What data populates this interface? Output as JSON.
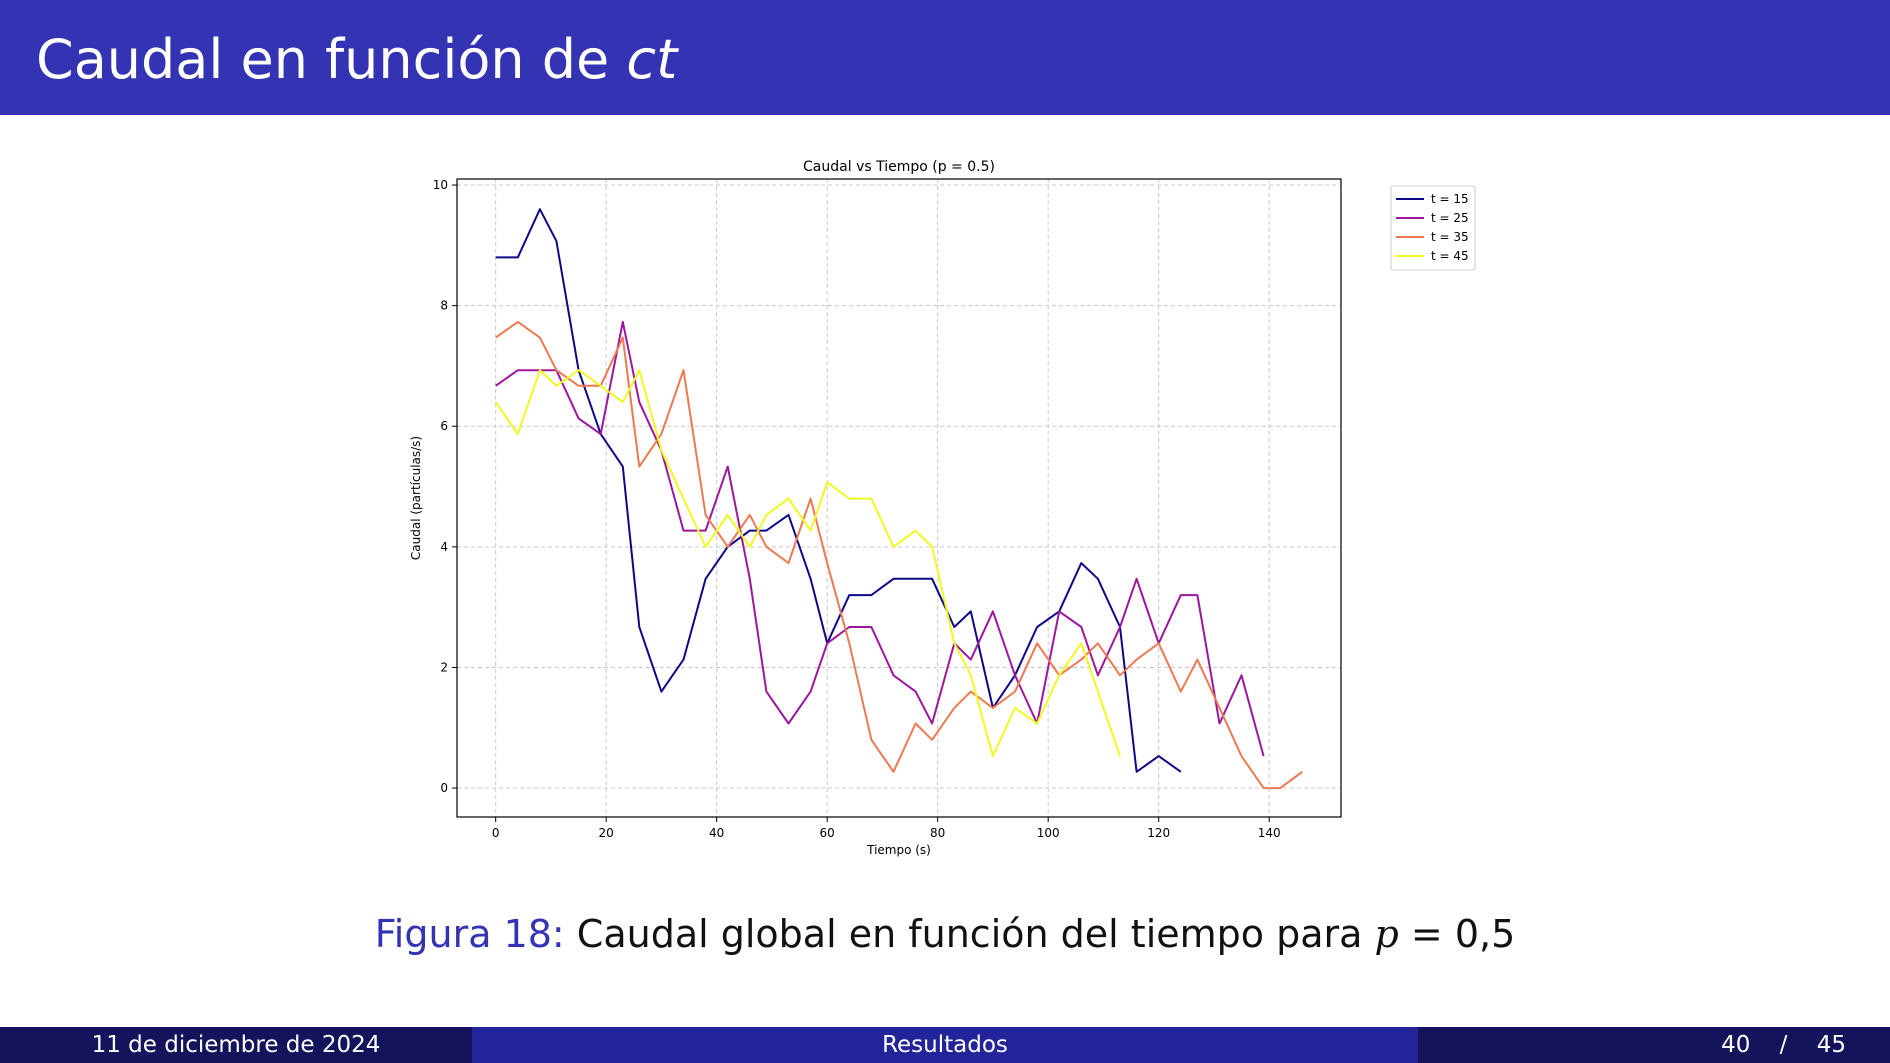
{
  "slide": {
    "title_prefix": "Caudal en función de ",
    "title_italic": "ct",
    "caption_label": "Figura 18:",
    "caption_text": " Caudal global en función del tiempo para ",
    "caption_var": "p",
    "caption_value": " = 0,5"
  },
  "footer": {
    "date": "11 de diciembre de 2024",
    "section": "Resultados",
    "page": "40",
    "separator": "/",
    "total": "45"
  },
  "chart_data": {
    "type": "line",
    "title": "Caudal vs Tiempo (p = 0.5)",
    "xlabel": "Tiempo (s)",
    "ylabel": "Caudal (partículas/s)",
    "xlim": [
      -7,
      153
    ],
    "ylim": [
      -0.48,
      10.1
    ],
    "xticks": [
      0,
      20,
      40,
      60,
      80,
      100,
      120,
      140
    ],
    "yticks": [
      0,
      2,
      4,
      6,
      8,
      10
    ],
    "grid": true,
    "legend_position": "outside-top-right",
    "series": [
      {
        "name": "t = 15",
        "color": "#0d0887",
        "x": [
          0,
          4,
          8,
          11,
          15,
          19,
          23,
          26,
          30,
          34,
          38,
          42,
          46,
          49,
          53,
          57,
          60,
          64,
          68,
          72,
          76,
          79,
          83,
          86,
          90,
          94,
          98,
          102,
          106,
          109,
          113,
          116,
          120,
          124
        ],
        "y": [
          8.8,
          8.8,
          9.6,
          9.07,
          6.93,
          5.87,
          5.33,
          2.67,
          1.6,
          2.13,
          3.47,
          4.0,
          4.27,
          4.27,
          4.53,
          3.47,
          2.4,
          3.2,
          3.2,
          3.47,
          3.47,
          3.47,
          2.67,
          2.93,
          1.33,
          1.87,
          2.67,
          2.93,
          3.73,
          3.47,
          2.67,
          0.27,
          0.53,
          0.27
        ]
      },
      {
        "name": "t = 25",
        "color": "#9c179e",
        "x": [
          0,
          4,
          8,
          11,
          15,
          19,
          23,
          26,
          30,
          34,
          38,
          42,
          46,
          49,
          53,
          57,
          60,
          64,
          68,
          72,
          76,
          79,
          83,
          86,
          90,
          94,
          98,
          102,
          106,
          109,
          113,
          116,
          120,
          124,
          127,
          131,
          135,
          139
        ],
        "y": [
          6.67,
          6.93,
          6.93,
          6.93,
          6.13,
          5.87,
          7.73,
          6.4,
          5.6,
          4.27,
          4.27,
          5.33,
          3.47,
          1.6,
          1.07,
          1.6,
          2.4,
          2.67,
          2.67,
          1.87,
          1.6,
          1.07,
          2.4,
          2.13,
          2.93,
          1.87,
          1.07,
          2.93,
          2.67,
          1.87,
          2.67,
          3.47,
          2.4,
          3.2,
          3.2,
          1.07,
          1.87,
          0.53
        ]
      },
      {
        "name": "t = 35",
        "color": "#ed7953",
        "x": [
          0,
          4,
          8,
          11,
          15,
          19,
          23,
          26,
          30,
          34,
          38,
          42,
          46,
          49,
          53,
          57,
          60,
          64,
          68,
          72,
          76,
          79,
          83,
          86,
          90,
          94,
          98,
          102,
          106,
          109,
          113,
          116,
          120,
          124,
          127,
          131,
          135,
          139,
          142,
          146
        ],
        "y": [
          7.47,
          7.73,
          7.47,
          6.93,
          6.67,
          6.67,
          7.47,
          5.33,
          5.87,
          6.93,
          4.53,
          4.0,
          4.53,
          4.0,
          3.73,
          4.8,
          3.73,
          2.4,
          0.8,
          0.27,
          1.07,
          0.8,
          1.33,
          1.6,
          1.33,
          1.6,
          2.4,
          1.87,
          2.13,
          2.4,
          1.87,
          2.13,
          2.4,
          1.6,
          2.13,
          1.33,
          0.53,
          0.0,
          0.0,
          0.27
        ]
      },
      {
        "name": "t = 45",
        "color": "#f0f921",
        "x": [
          0,
          4,
          8,
          11,
          15,
          19,
          23,
          26,
          30,
          34,
          38,
          42,
          46,
          49,
          53,
          57,
          60,
          64,
          68,
          72,
          76,
          79,
          83,
          86,
          90,
          94,
          98,
          102,
          106,
          109,
          113
        ],
        "y": [
          6.4,
          5.87,
          6.93,
          6.67,
          6.93,
          6.67,
          6.4,
          6.93,
          5.6,
          4.8,
          4.0,
          4.53,
          4.0,
          4.53,
          4.8,
          4.27,
          5.07,
          4.8,
          4.8,
          4.0,
          4.27,
          4.0,
          2.4,
          1.87,
          0.53,
          1.33,
          1.07,
          1.87,
          2.4,
          1.6,
          0.53
        ]
      }
    ]
  }
}
